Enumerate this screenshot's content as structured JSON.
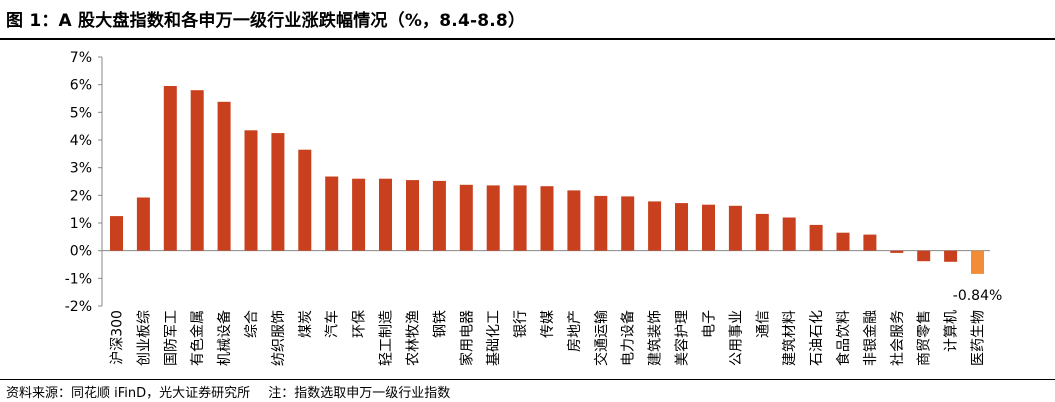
{
  "header": {
    "title": "图 1：A 股大盘指数和各申万一级行业涨跌幅情况（%，8.4-8.8）"
  },
  "footer": {
    "source": "资料来源：同花顺 iFinD，光大证券研究所",
    "note": "注：指数选取申万一级行业指数"
  },
  "colors": {
    "bar": "#c8401e",
    "highlight": "#f28c38",
    "axis": "#888888"
  },
  "chart_data": {
    "type": "bar",
    "title": "",
    "xlabel": "",
    "ylabel": "",
    "ylim": [
      -2,
      7
    ],
    "yticks": [
      "-2%",
      "-1%",
      "0%",
      "1%",
      "2%",
      "3%",
      "4%",
      "5%",
      "6%",
      "7%"
    ],
    "categories": [
      "沪深300",
      "创业板综",
      "国防军工",
      "有色金属",
      "机械设备",
      "综合",
      "纺织服饰",
      "煤炭",
      "汽车",
      "环保",
      "轻工制造",
      "农林牧渔",
      "钢铁",
      "家用电器",
      "基础化工",
      "银行",
      "传媒",
      "房地产",
      "交通运输",
      "电力设备",
      "建筑装饰",
      "美容护理",
      "电子",
      "公用事业",
      "通信",
      "建筑材料",
      "石油石化",
      "食品饮料",
      "非银金融",
      "社会服务",
      "商贸零售",
      "计算机",
      "医药生物"
    ],
    "values": [
      1.25,
      1.92,
      5.95,
      5.8,
      5.38,
      4.35,
      4.25,
      3.65,
      2.68,
      2.6,
      2.6,
      2.55,
      2.52,
      2.38,
      2.36,
      2.36,
      2.33,
      2.18,
      1.98,
      1.96,
      1.78,
      1.72,
      1.66,
      1.62,
      1.33,
      1.2,
      0.93,
      0.65,
      0.58,
      -0.08,
      -0.38,
      -0.4,
      -0.84
    ],
    "highlight_index": 32,
    "annotations": [
      {
        "text": "-0.84%",
        "category": "医药生物"
      }
    ]
  }
}
